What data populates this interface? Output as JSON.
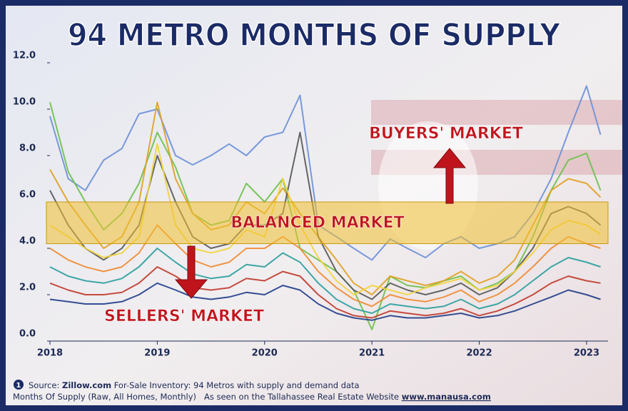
{
  "chart_data": {
    "type": "line",
    "title": "94 METRO MONTHS OF SUPPLY",
    "annotations": {
      "buyers": "BUYERS' MARKET",
      "balanced": "BALANCED MARKET",
      "sellers": "SELLERS' MARKET"
    },
    "band": [
      4.2,
      6.0
    ],
    "x": [
      2018,
      2018.17,
      2018.33,
      2018.5,
      2018.67,
      2018.83,
      2019,
      2019.17,
      2019.33,
      2019.5,
      2019.67,
      2019.83,
      2020,
      2020.17,
      2020.33,
      2020.5,
      2020.67,
      2020.83,
      2021,
      2021.17,
      2021.33,
      2021.5,
      2021.67,
      2021.83,
      2022,
      2022.17,
      2022.33,
      2022.5,
      2022.67,
      2022.83,
      2023,
      2023.13
    ],
    "xlim": [
      2018,
      2023.2
    ],
    "xticks": [
      2018,
      2019,
      2020,
      2021,
      2022,
      2023
    ],
    "ylim": [
      0,
      12
    ],
    "yticks": [
      {
        "value": 0,
        "label": "0.0"
      },
      {
        "value": 2,
        "label": "2.0"
      },
      {
        "value": 4,
        "label": "4.0"
      },
      {
        "value": 6,
        "label": "6.0"
      },
      {
        "value": 8,
        "label": "8.0"
      },
      {
        "value": 10,
        "label": "10.0"
      },
      {
        "value": 12,
        "label": "12.0"
      }
    ],
    "series": [
      {
        "color": "#6a8fd8",
        "values": [
          9.7,
          7.0,
          6.5,
          7.8,
          8.3,
          9.8,
          10.0,
          8.0,
          7.6,
          8.0,
          8.5,
          8.0,
          8.8,
          9.0,
          10.6,
          5.0,
          4.5,
          4.0,
          3.5,
          4.4,
          4.0,
          3.6,
          4.2,
          4.5,
          4.0,
          4.2,
          4.5,
          5.5,
          7.0,
          9.0,
          11.0,
          8.9
        ]
      },
      {
        "color": "#6cc04a",
        "values": [
          10.3,
          7.3,
          6.0,
          4.8,
          5.5,
          6.8,
          9.0,
          7.5,
          5.5,
          5.0,
          5.2,
          6.8,
          6.0,
          7.0,
          4.0,
          3.5,
          3.0,
          2.2,
          0.5,
          2.8,
          2.4,
          2.3,
          2.6,
          2.8,
          2.2,
          2.5,
          3.0,
          4.5,
          6.5,
          7.8,
          8.1,
          6.5
        ]
      },
      {
        "color": "#e0a020",
        "values": [
          7.4,
          6.0,
          5.0,
          4.0,
          4.5,
          6.0,
          10.3,
          7.0,
          5.5,
          4.8,
          5.0,
          6.0,
          5.5,
          6.6,
          5.5,
          4.5,
          3.5,
          2.5,
          2.0,
          2.8,
          2.6,
          2.4,
          2.6,
          3.0,
          2.5,
          2.8,
          3.5,
          5.0,
          6.5,
          7.0,
          6.8,
          6.2
        ]
      },
      {
        "color": "#555555",
        "values": [
          6.5,
          5.0,
          4.0,
          3.5,
          4.0,
          5.0,
          8.0,
          6.0,
          4.5,
          4.0,
          4.2,
          5.0,
          5.0,
          5.5,
          9.0,
          4.5,
          3.0,
          2.2,
          1.8,
          2.5,
          2.2,
          2.0,
          2.2,
          2.5,
          2.0,
          2.3,
          3.0,
          4.0,
          5.5,
          5.8,
          5.5,
          5.0
        ]
      },
      {
        "color": "#f2d43a",
        "values": [
          5.0,
          4.5,
          4.0,
          3.6,
          3.8,
          4.5,
          8.5,
          5.0,
          4.0,
          3.8,
          4.0,
          4.8,
          4.5,
          7.0,
          5.0,
          3.6,
          2.6,
          2.0,
          2.4,
          2.2,
          2.0,
          2.3,
          2.5,
          2.7,
          2.2,
          2.4,
          3.0,
          3.8,
          4.8,
          5.2,
          5.0,
          4.6
        ]
      },
      {
        "color": "#f08a30",
        "values": [
          4.0,
          3.5,
          3.2,
          3.0,
          3.2,
          3.8,
          5.0,
          4.2,
          3.5,
          3.2,
          3.4,
          4.0,
          4.0,
          4.5,
          4.0,
          3.0,
          2.3,
          1.8,
          1.5,
          2.0,
          1.8,
          1.7,
          1.9,
          2.2,
          1.7,
          2.0,
          2.5,
          3.2,
          4.0,
          4.5,
          4.2,
          4.0
        ]
      },
      {
        "color": "#2a9d9d",
        "values": [
          3.2,
          2.8,
          2.6,
          2.5,
          2.7,
          3.2,
          4.0,
          3.4,
          2.9,
          2.7,
          2.8,
          3.3,
          3.2,
          3.8,
          3.4,
          2.5,
          1.8,
          1.4,
          1.2,
          1.6,
          1.5,
          1.4,
          1.5,
          1.8,
          1.4,
          1.6,
          2.0,
          2.6,
          3.2,
          3.6,
          3.4,
          3.2
        ]
      },
      {
        "color": "#c0392b",
        "values": [
          2.5,
          2.2,
          2.0,
          2.0,
          2.1,
          2.5,
          3.2,
          2.8,
          2.3,
          2.2,
          2.3,
          2.7,
          2.6,
          3.0,
          2.8,
          2.0,
          1.4,
          1.1,
          1.0,
          1.3,
          1.2,
          1.1,
          1.2,
          1.4,
          1.1,
          1.3,
          1.6,
          2.0,
          2.5,
          2.8,
          2.6,
          2.5
        ]
      },
      {
        "color": "#1f3c88",
        "values": [
          1.8,
          1.7,
          1.6,
          1.6,
          1.7,
          2.0,
          2.5,
          2.2,
          1.9,
          1.8,
          1.9,
          2.1,
          2.0,
          2.4,
          2.2,
          1.6,
          1.2,
          1.0,
          0.9,
          1.1,
          1.0,
          1.0,
          1.1,
          1.2,
          1.0,
          1.1,
          1.3,
          1.6,
          1.9,
          2.2,
          2.0,
          1.8
        ]
      }
    ]
  },
  "footer": {
    "badge": "1",
    "source_label": "Source:",
    "source_site": "Zillow.com",
    "source_text": "For-Sale Inventory: 94 Metros with supply and demand data",
    "line2": "Months Of Supply (Raw, All Homes, Monthly)   As seen on the Tallahassee Real Estate Website",
    "site": "www.manausa.com"
  }
}
